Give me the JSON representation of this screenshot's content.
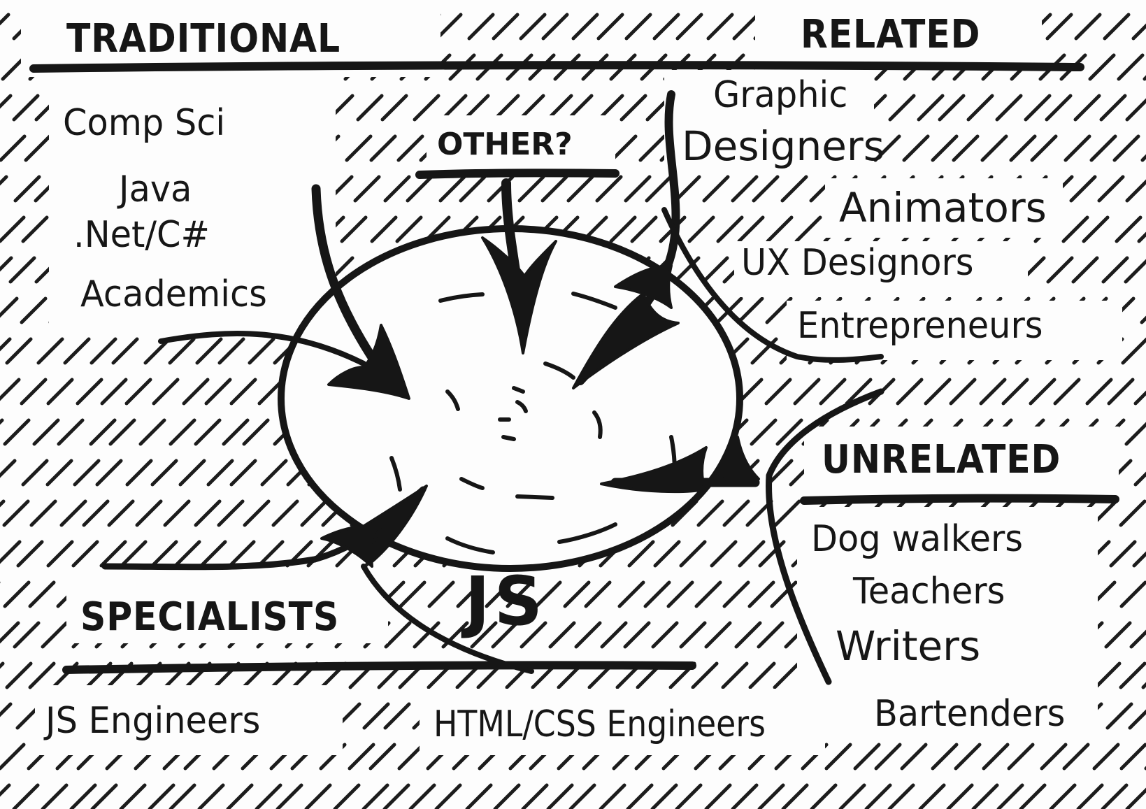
{
  "groups": {
    "traditional": {
      "title": "TRADITIONAL",
      "items": [
        "Comp Sci",
        "Java",
        ".Net/C#",
        "Academics"
      ]
    },
    "related": {
      "title": "RELATED",
      "items": [
        "Graphic",
        "Designers",
        "Animators",
        "UX Designors",
        "Entrepreneurs"
      ]
    },
    "other": {
      "title": "OTHER?"
    },
    "unrelated": {
      "title": "UNRELATED",
      "items": [
        "Dog walkers",
        "Teachers",
        "Writers",
        "Bartenders"
      ]
    },
    "specialists": {
      "title": "SPECIALISTS",
      "items": [
        "JS Engineers",
        "HTML/CSS Engineers"
      ]
    }
  },
  "center": {
    "label": "JS"
  },
  "colors": {
    "ink": "#161616",
    "paper": "#fdfdfd"
  }
}
